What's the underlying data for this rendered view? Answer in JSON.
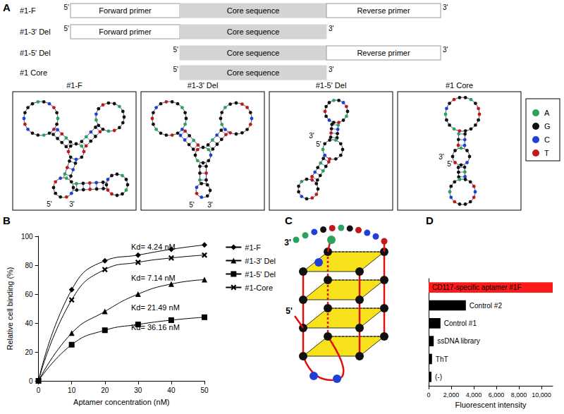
{
  "panel_labels": [
    "A",
    "B",
    "C",
    "D"
  ],
  "constructs": [
    {
      "name": "#1-F",
      "parts": [
        "Forward primer",
        "Core sequence",
        "Reverse primer"
      ]
    },
    {
      "name": "#1-3' Del",
      "parts": [
        "Forward primer",
        "Core sequence",
        null
      ]
    },
    {
      "name": "#1-5' Del",
      "parts": [
        null,
        "Core sequence",
        "Reverse primer"
      ]
    },
    {
      "name": "#1 Core",
      "parts": [
        null,
        "Core sequence",
        null
      ]
    }
  ],
  "end_labels": {
    "five": "5'",
    "three": "3'"
  },
  "structures": [
    "#1-F",
    "#1-3' Del",
    "#1-5' Del",
    "#1 Core"
  ],
  "nucleotide_legend": [
    {
      "base": "A",
      "color": "#2ca25f"
    },
    {
      "base": "G",
      "color": "#111111"
    },
    {
      "base": "C",
      "color": "#1f3fd6"
    },
    {
      "base": "T",
      "color": "#c0181e"
    }
  ],
  "chart_data": [
    {
      "type": "line",
      "xlabel": "Aptamer concentration (nM)",
      "ylabel": "Relative cell binding (%)",
      "x": [
        0,
        10,
        20,
        30,
        40,
        50
      ],
      "series": [
        {
          "name": "#1-F",
          "color": "#000000",
          "marker": "diamond",
          "values": [
            0,
            63,
            83,
            87,
            91,
            94
          ]
        },
        {
          "name": "#1-3' Del",
          "color": "#000000",
          "marker": "triangle",
          "values": [
            0,
            33,
            48,
            60,
            67,
            70
          ]
        },
        {
          "name": "#1-5' Del",
          "color": "#000000",
          "marker": "square",
          "values": [
            0,
            25,
            35,
            39,
            42,
            44
          ]
        },
        {
          "name": "#1-Core",
          "color": "#000000",
          "marker": "x",
          "values": [
            0,
            56,
            77,
            82,
            85,
            87
          ]
        }
      ],
      "annotations": [
        "Kd= 4.24 nM",
        "Kd= 7.14 nM",
        "Kd= 21.49 nM",
        "Kd= 36.16 nM"
      ],
      "xlim": [
        0,
        50
      ],
      "xticks": [
        0,
        10,
        20,
        30,
        40,
        50
      ],
      "ylim": [
        0,
        100
      ],
      "yticks": [
        0,
        20,
        40,
        60,
        80,
        100
      ],
      "line_style": "smooth",
      "legend": "right",
      "grid": false
    },
    {
      "type": "bar",
      "orientation": "horizontal",
      "xlabel": "Fluorescent intensity",
      "categories": [
        "CD117-specific aptamer #1F",
        "Control #2",
        "Control #1",
        "ssDNA library",
        "ThT",
        "(-)"
      ],
      "values": [
        11000,
        3300,
        1050,
        450,
        300,
        250
      ],
      "colors": [
        "#ff1a1a",
        "#000000",
        "#000000",
        "#000000",
        "#000000",
        "#000000"
      ],
      "xlim": [
        0,
        11000
      ],
      "xticks": [
        0,
        2000,
        4000,
        6000,
        8000,
        10000
      ],
      "tick_labels": "x",
      "grid": false
    }
  ]
}
